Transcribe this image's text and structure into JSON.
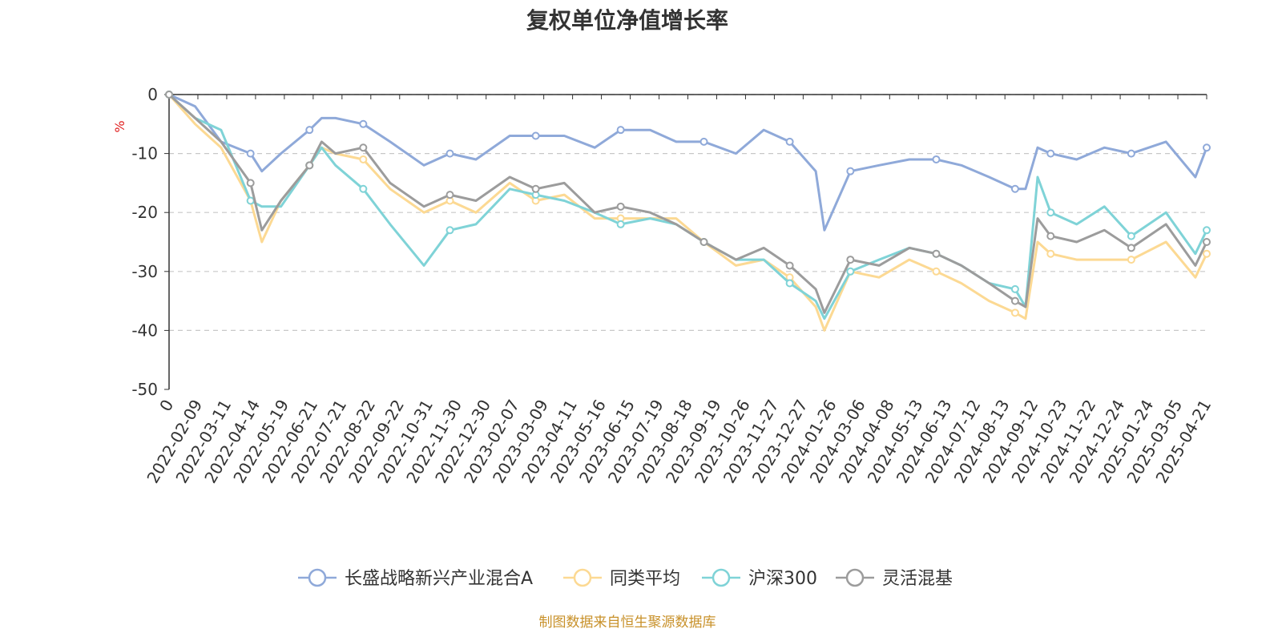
{
  "chart_data": {
    "type": "line",
    "title": "复权单位净值增长率",
    "y_unit": "%",
    "ylim": [
      -50,
      0
    ],
    "y_ticks": [
      0,
      -10,
      -20,
      -30,
      -40,
      -50
    ],
    "grid": "horizontal dashed",
    "legend_position": "bottom",
    "x_tick_labels": [
      "0",
      "2022-02-09",
      "2022-03-11",
      "2022-04-14",
      "2022-05-19",
      "2022-06-21",
      "2022-07-21",
      "2022-08-22",
      "2022-09-22",
      "2022-10-31",
      "2022-11-30",
      "2022-12-30",
      "2023-02-07",
      "2023-03-09",
      "2023-04-11",
      "2023-05-16",
      "2023-06-15",
      "2023-07-19",
      "2023-08-18",
      "2023-09-19",
      "2023-10-26",
      "2023-11-27",
      "2023-12-27",
      "2024-01-26",
      "2024-03-06",
      "2024-04-08",
      "2024-05-13",
      "2024-06-13",
      "2024-07-12",
      "2024-08-13",
      "2024-09-12",
      "2024-10-23",
      "2024-11-22",
      "2024-12-24",
      "2025-01-24",
      "2025-03-05",
      "2025-04-21"
    ],
    "x": [
      "2022-01-10",
      "2022-02-09",
      "2022-03-11",
      "2022-04-14",
      "2022-04-27",
      "2022-05-19",
      "2022-06-21",
      "2022-07-05",
      "2022-07-21",
      "2022-08-22",
      "2022-09-22",
      "2022-10-31",
      "2022-11-30",
      "2022-12-30",
      "2023-02-07",
      "2023-03-09",
      "2023-04-11",
      "2023-05-16",
      "2023-06-15",
      "2023-07-19",
      "2023-08-18",
      "2023-09-19",
      "2023-10-26",
      "2023-11-27",
      "2023-12-27",
      "2024-01-26",
      "2024-02-05",
      "2024-03-06",
      "2024-04-08",
      "2024-05-13",
      "2024-06-13",
      "2024-07-12",
      "2024-08-13",
      "2024-09-12",
      "2024-09-24",
      "2024-10-08",
      "2024-10-23",
      "2024-11-22",
      "2024-12-24",
      "2025-01-24",
      "2025-03-05",
      "2025-04-08",
      "2025-04-21"
    ],
    "series": [
      {
        "name": "长盛战略新兴产业混合A",
        "color": "#8fa9d9",
        "values": [
          0,
          -2,
          -8,
          -10,
          -13,
          -10,
          -6,
          -4,
          -4,
          -5,
          -8,
          -12,
          -10,
          -11,
          -7,
          -7,
          -7,
          -9,
          -6,
          -6,
          -8,
          -8,
          -10,
          -6,
          -8,
          -13,
          -23,
          -13,
          -12,
          -11,
          -11,
          -12,
          -14,
          -16,
          -16,
          -9,
          -10,
          -11,
          -9,
          -10,
          -8,
          -14,
          -9
        ]
      },
      {
        "name": "同类平均",
        "color": "#fcd993",
        "values": [
          0,
          -5,
          -9,
          -18,
          -25,
          -18,
          -12,
          -9,
          -10,
          -11,
          -16,
          -20,
          -18,
          -20,
          -15,
          -18,
          -17,
          -21,
          -21,
          -21,
          -21,
          -25,
          -29,
          -28,
          -31,
          -36,
          -40,
          -30,
          -31,
          -28,
          -30,
          -32,
          -35,
          -37,
          -38,
          -25,
          -27,
          -28,
          -28,
          -28,
          -25,
          -31,
          -27
        ]
      },
      {
        "name": "沪深300",
        "color": "#7fd3d7",
        "values": [
          0,
          -4,
          -6,
          -18,
          -19,
          -19,
          -12,
          -9,
          -12,
          -16,
          -22,
          -29,
          -23,
          -22,
          -16,
          -17,
          -18,
          -20,
          -22,
          -21,
          -22,
          -25,
          -28,
          -28,
          -32,
          -35,
          -38,
          -30,
          -28,
          -26,
          -27,
          -29,
          -32,
          -33,
          -36,
          -14,
          -20,
          -22,
          -19,
          -24,
          -20,
          -27,
          -23
        ]
      },
      {
        "name": "灵活混基",
        "color": "#9c9c9c",
        "values": [
          0,
          -4,
          -8,
          -15,
          -23,
          -18,
          -12,
          -8,
          -10,
          -9,
          -15,
          -19,
          -17,
          -18,
          -14,
          -16,
          -15,
          -20,
          -19,
          -20,
          -22,
          -25,
          -28,
          -26,
          -29,
          -33,
          -37,
          -28,
          -29,
          -26,
          -27,
          -29,
          -32,
          -35,
          -36,
          -21,
          -24,
          -25,
          -23,
          -26,
          -22,
          -29,
          -25
        ]
      }
    ]
  },
  "source_note": "制图数据来自恒生聚源数据库"
}
